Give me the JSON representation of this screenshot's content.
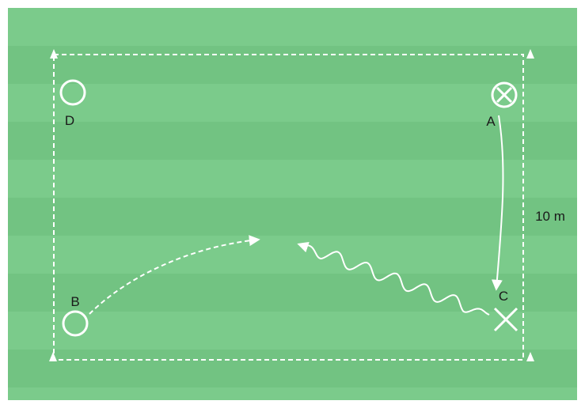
{
  "colors": {
    "pitch_light": "#7bcb8b",
    "pitch_dark": "#72c382",
    "line": "#ffffff",
    "label": "#1a1a1a"
  },
  "players": {
    "a": {
      "label": "A",
      "marker": "circle-x-icon"
    },
    "b": {
      "label": "B",
      "marker": "circle-icon"
    },
    "c": {
      "label": "C",
      "marker": "x-icon"
    },
    "d": {
      "label": "D",
      "marker": "circle-icon"
    }
  },
  "dimension_label": "10 m",
  "movements": {
    "a_to_c": "solid-arrow",
    "b_pass": "dashed-arrow",
    "c_dribble": "wavy-arrow"
  }
}
